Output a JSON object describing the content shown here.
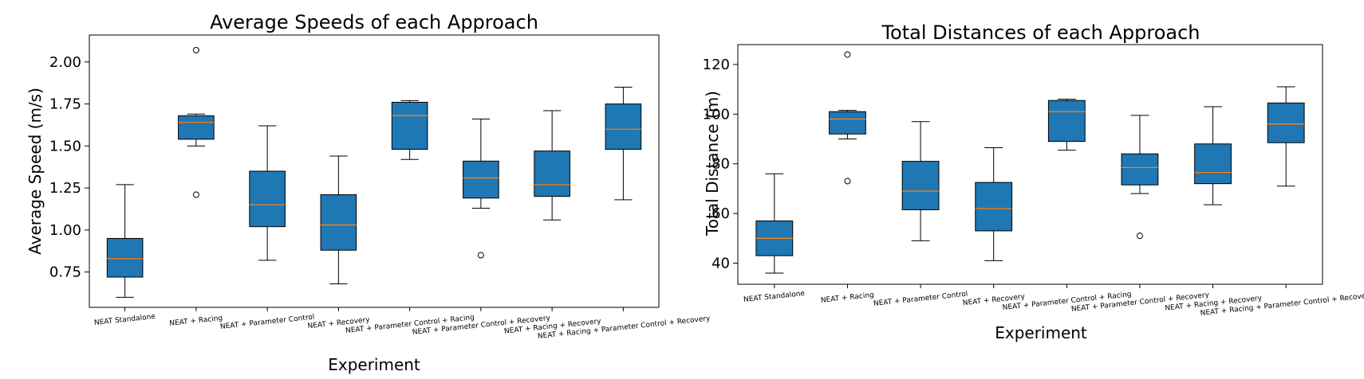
{
  "chart_data": [
    {
      "type": "box",
      "title": "Average Speeds of each Approach",
      "xlabel": "Experiment",
      "ylabel": "Average Speed (m/s)",
      "ylim": [
        0.54,
        2.16
      ],
      "yticks": [
        "0.75",
        "1.00",
        "1.25",
        "1.50",
        "1.75",
        "2.00"
      ],
      "yticks_values": [
        0.75,
        1.0,
        1.25,
        1.5,
        1.75,
        2.0
      ],
      "categories": [
        "NEAT Standalone",
        "NEAT + Racing",
        "NEAT + Parameter Control",
        "NEAT + Recovery",
        "NEAT + Parameter Control + Racing",
        "NEAT + Parameter Control + Recovery",
        "NEAT + Racing + Recovery",
        "NEAT + Racing + Parameter Control + Recovery"
      ],
      "boxes": [
        {
          "whislo": 0.6,
          "q1": 0.72,
          "med": 0.83,
          "q3": 0.95,
          "whishi": 1.27,
          "fliers": []
        },
        {
          "whislo": 1.5,
          "q1": 1.54,
          "med": 1.64,
          "q3": 1.68,
          "whishi": 1.69,
          "fliers": [
            2.07,
            1.21
          ]
        },
        {
          "whislo": 0.82,
          "q1": 1.02,
          "med": 1.15,
          "q3": 1.35,
          "whishi": 1.62,
          "fliers": []
        },
        {
          "whislo": 0.68,
          "q1": 0.88,
          "med": 1.03,
          "q3": 1.21,
          "whishi": 1.44,
          "fliers": []
        },
        {
          "whislo": 1.42,
          "q1": 1.48,
          "med": 1.68,
          "q3": 1.76,
          "whishi": 1.77,
          "fliers": []
        },
        {
          "whislo": 1.13,
          "q1": 1.19,
          "med": 1.31,
          "q3": 1.41,
          "whishi": 1.66,
          "fliers": [
            0.85
          ]
        },
        {
          "whislo": 1.06,
          "q1": 1.2,
          "med": 1.27,
          "q3": 1.47,
          "whishi": 1.71,
          "fliers": []
        },
        {
          "whislo": 1.18,
          "q1": 1.48,
          "med": 1.6,
          "q3": 1.75,
          "whishi": 1.85,
          "fliers": []
        }
      ]
    },
    {
      "type": "box",
      "title": "Total Distances of each Approach",
      "xlabel": "Experiment",
      "ylabel": "Total Distance (m)",
      "ylim": [
        31.5,
        128
      ],
      "yticks": [
        "40",
        "60",
        "80",
        "100",
        "120"
      ],
      "yticks_values": [
        40,
        60,
        80,
        100,
        120
      ],
      "categories": [
        "NEAT Standalone",
        "NEAT + Racing",
        "NEAT + Parameter Control",
        "NEAT + Recovery",
        "NEAT + Parameter Control + Racing",
        "NEAT + Parameter Control + Recovery",
        "NEAT + Racing + Recovery",
        "NEAT + Racing + Parameter Control + Recovery"
      ],
      "boxes": [
        {
          "whislo": 36,
          "q1": 43,
          "med": 50,
          "q3": 57,
          "whishi": 76,
          "fliers": []
        },
        {
          "whislo": 90,
          "q1": 92,
          "med": 98,
          "q3": 101,
          "whishi": 101.5,
          "fliers": [
            124,
            73
          ]
        },
        {
          "whislo": 49,
          "q1": 61.5,
          "med": 69,
          "q3": 81,
          "whishi": 97,
          "fliers": []
        },
        {
          "whislo": 41,
          "q1": 53,
          "med": 62,
          "q3": 72.5,
          "whishi": 86.5,
          "fliers": []
        },
        {
          "whislo": 85.5,
          "q1": 89,
          "med": 101,
          "q3": 105.5,
          "whishi": 106,
          "fliers": []
        },
        {
          "whislo": 68,
          "q1": 71.5,
          "med": 78.5,
          "q3": 84,
          "whishi": 99.5,
          "fliers": [
            51
          ]
        },
        {
          "whislo": 63.5,
          "q1": 72,
          "med": 76.5,
          "q3": 88,
          "whishi": 103,
          "fliers": []
        },
        {
          "whislo": 71,
          "q1": 88.5,
          "med": 96,
          "q3": 104.5,
          "whishi": 111,
          "fliers": []
        }
      ]
    }
  ]
}
